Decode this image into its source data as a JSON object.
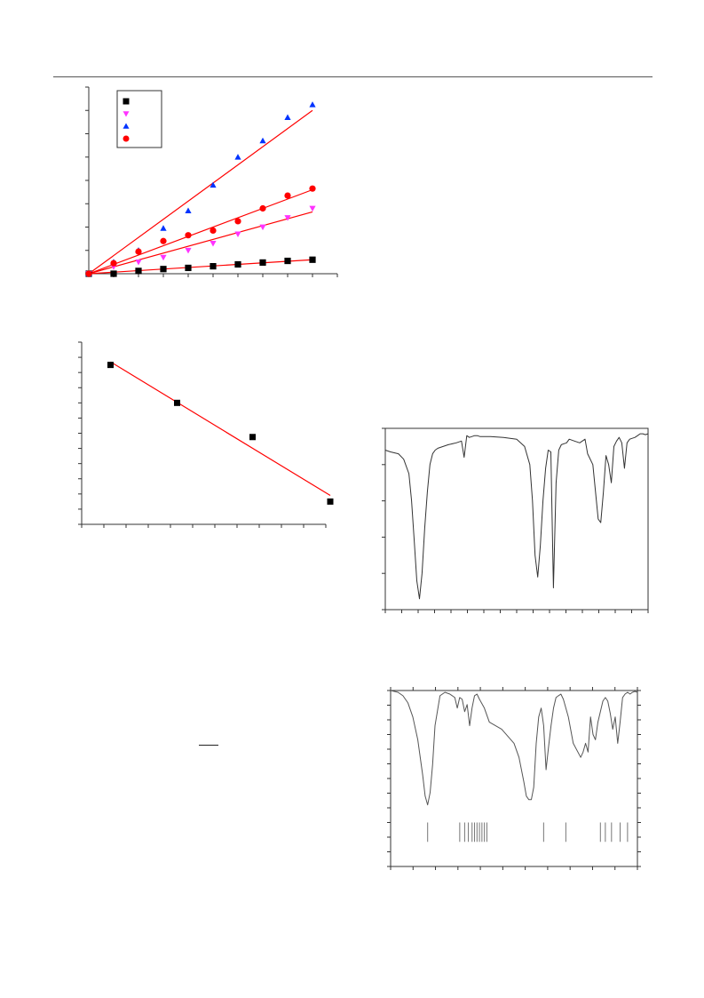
{
  "page": {
    "header_rule": true
  },
  "colors": {
    "fit_line": "#ff0000",
    "series_black": "#000000",
    "series_magenta": "#ff33ff",
    "series_blue": "#0033ff",
    "series_red": "#ff0000",
    "spectrum_line": "#333333",
    "frame": "#333333"
  },
  "chart_data": [
    {
      "id": "kinetics",
      "type": "scatter",
      "title": "",
      "xlabel": "",
      "ylabel": "",
      "xlim": [
        0,
        10
      ],
      "ylim": [
        0,
        8
      ],
      "x_ticks": 10,
      "y_ticks": 8,
      "legend": "top-left",
      "legend_entries": [
        "square",
        "triangle-down",
        "triangle-up",
        "circle"
      ],
      "series": [
        {
          "marker": "square",
          "color": "#000000",
          "x": [
            0,
            1,
            2,
            3,
            4,
            5,
            6,
            7,
            8,
            9
          ],
          "y": [
            0,
            0,
            0.12,
            0.2,
            0.25,
            0.32,
            0.4,
            0.48,
            0.55,
            0.6
          ],
          "fit": [
            [
              0,
              0
            ],
            [
              9,
              0.6
            ]
          ]
        },
        {
          "marker": "triangle-down",
          "color": "#ff33ff",
          "x": [
            0,
            1,
            2,
            3,
            4,
            5,
            6,
            7,
            8,
            9
          ],
          "y": [
            0,
            0.3,
            0.5,
            0.7,
            1.0,
            1.3,
            1.7,
            2.0,
            2.4,
            2.8
          ],
          "fit": [
            [
              0,
              0
            ],
            [
              9,
              2.65
            ]
          ]
        },
        {
          "marker": "triangle-up",
          "color": "#0033ff",
          "x": [
            0,
            1,
            2,
            3,
            4,
            5,
            6,
            7,
            8,
            9
          ],
          "y": [
            0,
            0.5,
            1.0,
            1.95,
            2.7,
            3.8,
            5.0,
            5.7,
            6.7,
            7.25
          ],
          "fit": [
            [
              0,
              0
            ],
            [
              9,
              7.0
            ]
          ]
        },
        {
          "marker": "circle",
          "color": "#ff0000",
          "x": [
            0,
            1,
            2,
            3,
            4,
            5,
            6,
            7,
            8,
            9
          ],
          "y": [
            0,
            0.45,
            0.95,
            1.4,
            1.65,
            1.85,
            2.25,
            2.8,
            3.35,
            3.65
          ],
          "fit": [
            [
              0,
              0
            ],
            [
              9,
              3.6
            ]
          ]
        }
      ]
    },
    {
      "id": "linear-fit",
      "type": "scatter",
      "title": "",
      "xlabel": "",
      "ylabel": "",
      "xlim": [
        0,
        11
      ],
      "ylim": [
        0,
        12
      ],
      "x_ticks": 11,
      "y_ticks": 12,
      "series": [
        {
          "marker": "square",
          "color": "#000000",
          "x": [
            1.3,
            4.3,
            7.7,
            11.2
          ],
          "y": [
            10.5,
            8.0,
            5.75,
            1.5
          ],
          "fit": [
            [
              1.3,
              10.7
            ],
            [
              11.2,
              1.9
            ]
          ]
        }
      ]
    },
    {
      "id": "ir-spectrum-1",
      "type": "line",
      "title": "",
      "xlabel": "",
      "ylabel": "",
      "xlim": [
        0,
        100
      ],
      "ylim": [
        0,
        100
      ],
      "x_ticks": 16,
      "y_ticks": 5,
      "x": [
        0,
        2,
        5,
        7,
        9,
        10,
        11,
        12,
        13,
        14,
        15,
        16,
        17,
        18,
        19,
        20,
        22,
        24,
        27,
        29,
        30,
        31,
        32,
        33,
        34,
        35,
        36,
        40,
        45,
        50,
        53,
        55,
        56,
        57,
        58,
        59,
        60,
        61,
        62,
        63,
        64,
        65,
        66,
        67,
        68,
        69,
        70,
        72,
        74,
        76,
        77,
        79,
        80,
        81,
        82,
        83,
        84,
        85,
        86,
        87,
        88,
        89,
        90,
        91,
        92,
        93,
        94,
        95,
        96,
        97,
        98,
        99,
        100
      ],
      "y": [
        88,
        87,
        86,
        83,
        75,
        60,
        38,
        16,
        6,
        20,
        45,
        65,
        80,
        86,
        88,
        89,
        90,
        91,
        92,
        93,
        84,
        96,
        95,
        95.5,
        96,
        96,
        95.5,
        95.5,
        95,
        94,
        90,
        80,
        60,
        30,
        18,
        35,
        60,
        78,
        88,
        87,
        12,
        70,
        88,
        91,
        91.5,
        92,
        94,
        93,
        92,
        94,
        86,
        80,
        65,
        50,
        48,
        65,
        85,
        80,
        70,
        90,
        93,
        95,
        92,
        78,
        92,
        94,
        94.5,
        95,
        96,
        97,
        97,
        96.5,
        97
      ],
      "peaks": [
        12,
        33,
        57,
        64,
        85,
        90
      ]
    },
    {
      "id": "ir-spectrum-2",
      "type": "line",
      "title": "",
      "xlabel": "",
      "ylabel": "",
      "xlim": [
        0,
        100
      ],
      "ylim": [
        0,
        100
      ],
      "x_ticks": 11,
      "y_ticks": 12,
      "x": [
        0,
        3,
        5,
        7,
        9,
        11,
        13,
        14,
        15,
        16,
        17,
        18,
        20,
        22,
        24,
        26,
        27,
        28,
        29,
        30,
        31,
        32,
        33,
        34,
        35,
        36,
        38,
        40,
        45,
        50,
        52,
        54,
        55,
        56,
        57,
        58,
        59,
        60,
        61,
        62,
        63,
        64,
        65,
        66,
        67,
        68,
        69,
        70,
        72,
        74,
        77,
        78,
        79,
        80,
        81,
        82,
        83,
        84,
        85,
        86,
        87,
        88,
        89,
        90,
        91,
        92,
        93,
        94,
        95,
        96,
        97,
        98,
        99,
        100
      ],
      "y": [
        100,
        99,
        97,
        93,
        85,
        72,
        52,
        40,
        35,
        42,
        58,
        80,
        97,
        99,
        98,
        96,
        90,
        96,
        95,
        88,
        92,
        80,
        90,
        97,
        98,
        95,
        90,
        82,
        78,
        70,
        62,
        48,
        40,
        38,
        38,
        45,
        70,
        85,
        90,
        80,
        55,
        68,
        80,
        90,
        96,
        97,
        98,
        95,
        85,
        70,
        62,
        65,
        70,
        65,
        85,
        75,
        72,
        82,
        88,
        94,
        96,
        94,
        87,
        78,
        85,
        70,
        82,
        96,
        98,
        99,
        98,
        99,
        99.5,
        99
      ],
      "line_list_x": [
        15,
        28,
        30,
        31.5,
        33,
        34,
        35,
        36,
        37,
        38,
        39,
        62,
        71,
        85,
        87,
        89.5,
        93,
        96
      ]
    }
  ]
}
